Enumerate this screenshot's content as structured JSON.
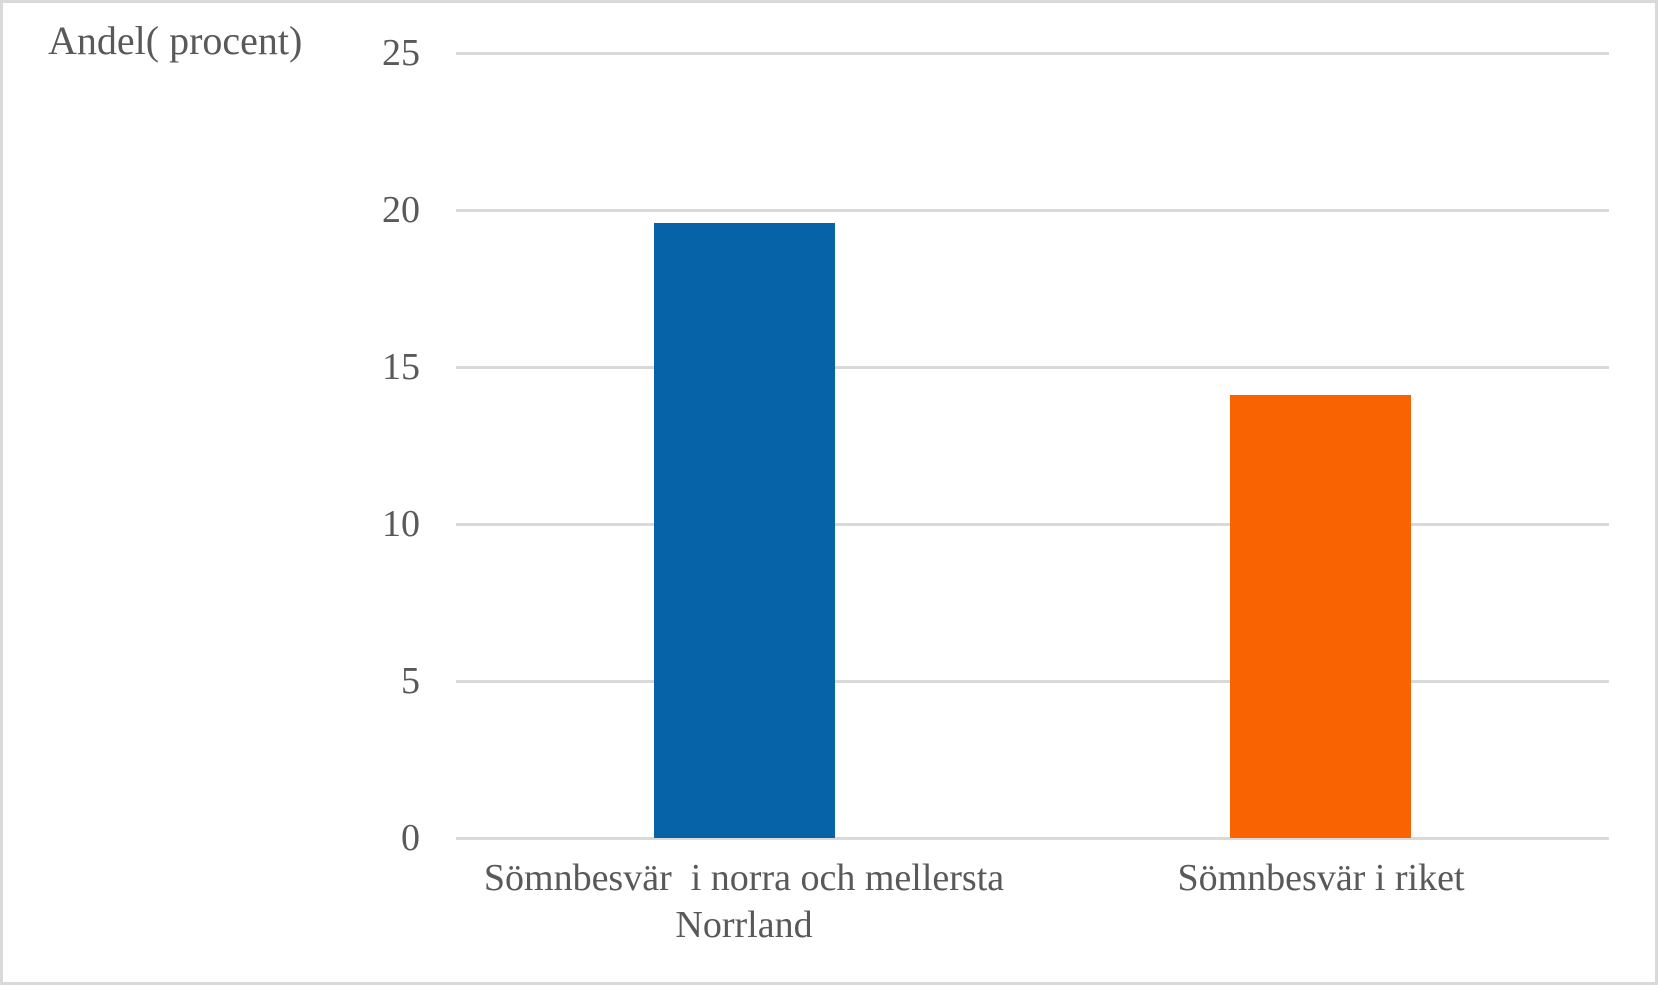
{
  "chart_data": {
    "type": "bar",
    "title": "Andel( procent)",
    "xlabel": "",
    "ylabel": "Andel( procent)",
    "categories": [
      "Sömnbesvär  i norra och mellersta\nNorrland",
      "Sömnbesvär i riket"
    ],
    "values": [
      19.6,
      14.1
    ],
    "bar_colors": [
      "#0663a8",
      "#fa6302"
    ],
    "ylim": [
      0,
      25
    ],
    "yticks": [
      0,
      5,
      10,
      15,
      20,
      25
    ],
    "grid": true,
    "legend_position": "none",
    "colors": {
      "gridline": "#d9d9d9",
      "axis_line": "#d9d9d9",
      "text": "#595959",
      "background": "#ffffff",
      "border": "#d9d9d9"
    }
  }
}
